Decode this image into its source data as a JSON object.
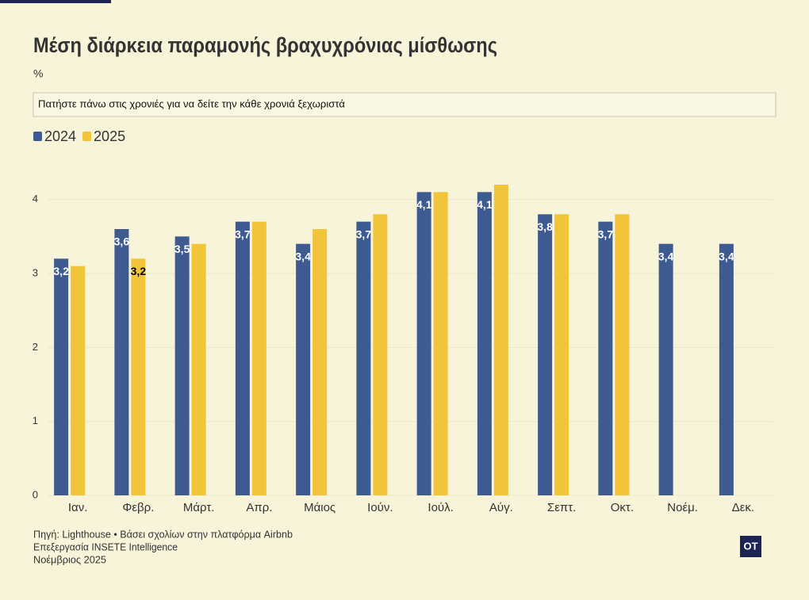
{
  "chart_data": {
    "type": "bar",
    "title": "Μέση διάρκεια παραμονής βραχυχρόνιας μίσθωσης",
    "subtitle": "%",
    "instruction": "Πατήστε πάνω στις χρονιές για να δείτε την κάθε χρονιά ξεχωριστά",
    "categories": [
      "Ιαν.",
      "Φεβρ.",
      "Μάρτ.",
      "Απρ.",
      "Μάιος",
      "Ιούν.",
      "Ιούλ.",
      "Αύγ.",
      "Σεπτ.",
      "Οκτ.",
      "Νοέμ.",
      "Δεκ."
    ],
    "series": [
      {
        "name": "2024",
        "color": "#3d5a91",
        "values": [
          3.2,
          3.6,
          3.5,
          3.7,
          3.4,
          3.7,
          4.1,
          4.1,
          3.8,
          3.7,
          3.4,
          3.4
        ],
        "value_labels": [
          "3,2",
          "3,6",
          "3,5",
          "3,7",
          "3,4",
          "3,7",
          "4,1",
          "4,1",
          "3,8",
          "3,7",
          "3,4",
          "3,4"
        ]
      },
      {
        "name": "2025",
        "color": "#f2c43a",
        "values": [
          3.1,
          3.2,
          3.4,
          3.7,
          3.6,
          3.8,
          4.1,
          4.2,
          3.8,
          3.8,
          null,
          null
        ],
        "value_labels": [
          null,
          "3,2",
          null,
          null,
          null,
          null,
          null,
          null,
          null,
          null,
          null,
          null
        ]
      }
    ],
    "ylim": [
      0,
      4.5
    ],
    "yticks": [
      0,
      1,
      2,
      3,
      4
    ],
    "grid": true,
    "source": [
      "Πηγή: Lighthouse • Βάσει σχολίων στην πλατφόρμα Airbnb",
      "Επεξεργασία INSETE Intelligence",
      "Νοέμβριος 2025"
    ],
    "logo": "OT"
  }
}
